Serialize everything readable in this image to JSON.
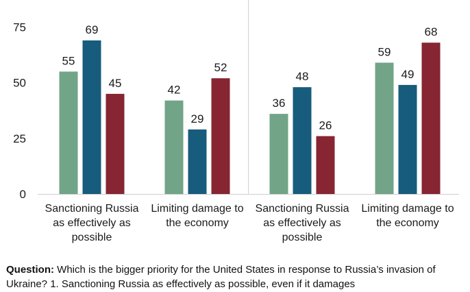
{
  "chart_data": {
    "type": "bar",
    "ylim": [
      0,
      75
    ],
    "yticks": [
      0,
      25,
      50,
      75
    ],
    "categories": [
      [
        "Sanctioning Russia",
        "as effectively as",
        "possible"
      ],
      [
        "Limiting damage to",
        "the economy"
      ],
      [
        "Sanctioning Russia",
        "as effectively as",
        "possible"
      ],
      [
        "Limiting damage to",
        "the economy"
      ]
    ],
    "series": [
      {
        "color": "#72a487",
        "values": [
          55,
          42,
          36,
          59
        ]
      },
      {
        "color": "#175c7c",
        "values": [
          69,
          29,
          48,
          49
        ]
      },
      {
        "color": "#872532",
        "values": [
          45,
          52,
          26,
          68
        ]
      }
    ],
    "legend": "none",
    "grid": false
  },
  "question": {
    "label": "Question:",
    "text": " Which is the bigger priority for the United States in response to Russia’s invasion of Ukraine? 1. Sanctioning Russia as effectively as possible, even if it damages"
  }
}
